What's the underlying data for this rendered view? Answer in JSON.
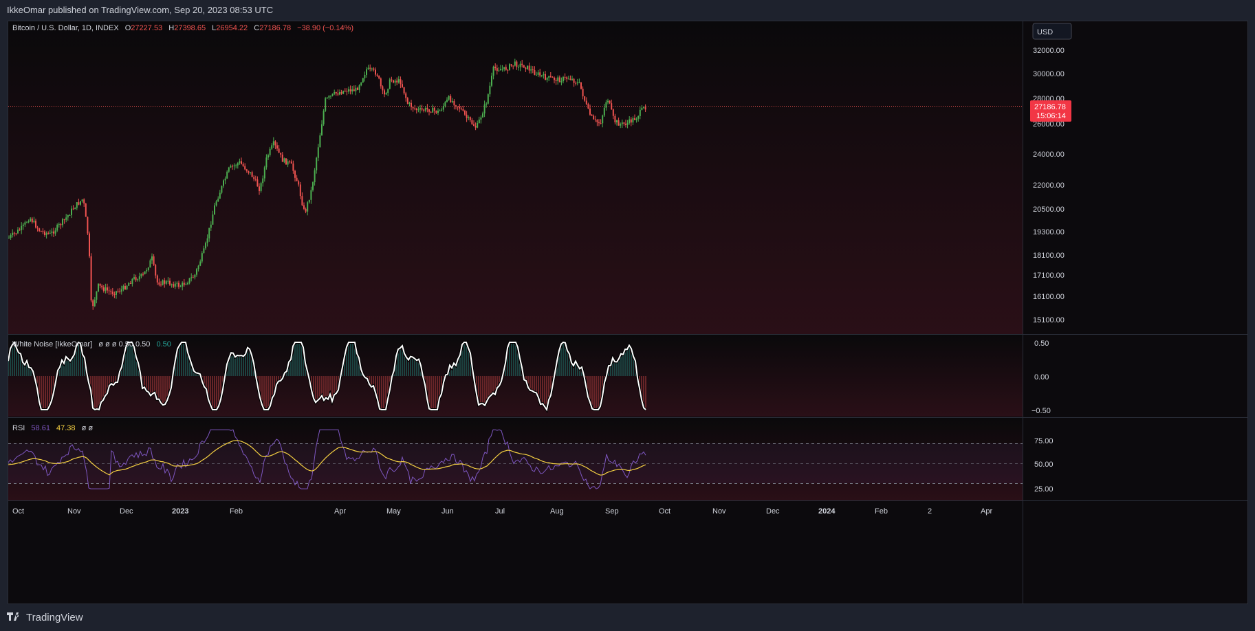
{
  "publish_line": "IkkeOmar published on TradingView.com, Sep 20, 2023 08:53 UTC",
  "symbol": {
    "title": "Bitcoin / U.S. Dollar, 1D, INDEX",
    "open_label": "O",
    "open": "27227.53",
    "high_label": "H",
    "high": "27398.65",
    "low_label": "L",
    "low": "26954.22",
    "close_label": "C",
    "close": "27186.78",
    "change": "−38.90 (−0.14%)"
  },
  "currency_button": "USD",
  "price_scale": [
    "32000.00",
    "30000.00",
    "28000.00",
    "26000.00",
    "24000.00",
    "22000.00",
    "20500.00",
    "19300.00",
    "18100.00",
    "17100.00",
    "16100.00",
    "15100.00"
  ],
  "last_price": {
    "value": "27186.78",
    "countdown": "15:06:14"
  },
  "white_noise": {
    "label": "White Noise [IkkeOmar]",
    "params": "ø  ø  ø  0.50  0.50",
    "value": "0.50",
    "scale": [
      "0.50",
      "0.00",
      "−0.50"
    ]
  },
  "rsi": {
    "label": "RSI",
    "value": "58.61",
    "ma_value": "47.38",
    "params": "ø  ø",
    "scale": [
      "75.00",
      "50.00",
      "25.00"
    ]
  },
  "time_axis": [
    "Oct",
    "Nov",
    "Dec",
    "2023",
    "Feb",
    "Apr",
    "May",
    "Jun",
    "Jul",
    "Aug",
    "Sep",
    "Oct",
    "Nov",
    "Dec",
    "2024",
    "Feb",
    "2",
    "Apr"
  ],
  "brand": "TradingView",
  "colors": {
    "up": "#26a69a",
    "up_bright": "#4caf50",
    "down": "#ef5350",
    "last_price_bg": "#f23645",
    "rsi_line": "#7e57c2",
    "rsi_ma": "#f5d142",
    "wn_line": "#ffffff"
  },
  "icons": {
    "brand": "tradingview-logo-icon"
  }
}
